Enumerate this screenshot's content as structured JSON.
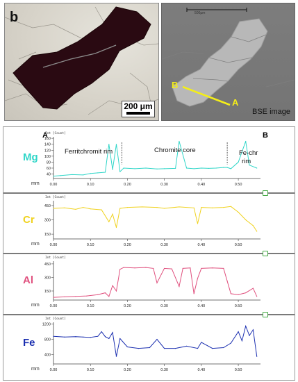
{
  "figure": {
    "panel_letter": "b",
    "scale_bar_text": "200 μm",
    "bse_scale_text": "500μm",
    "bse_label": "BSE image",
    "point_a": "A",
    "point_b": "B"
  },
  "profile": {
    "corner_a": "A",
    "corner_b": "B",
    "int_label": "Int [Count]",
    "mm_label": "mm",
    "annotations": {
      "ferrichromit_rim": "Ferritchromit rim",
      "chromite_core": "Chromite core",
      "fe_chr_rim_1": "Fe-chr",
      "fe_chr_rim_2": "rim"
    },
    "colors": {
      "Mg": "#2fd6c8",
      "Cr": "#f0d21e",
      "Al": "#e0507e",
      "Fe": "#1b2fb0"
    }
  },
  "chart_data": [
    {
      "type": "line",
      "series": [
        {
          "name": "Mg"
        }
      ],
      "x_ticks": [
        "0.00",
        "0.10",
        "0.20",
        "0.30",
        "0.40",
        "0.50"
      ],
      "y_ticks": [
        "40",
        "60",
        "80",
        "100",
        "120",
        "140",
        "160"
      ],
      "ylim": [
        25,
        165
      ],
      "xlim": [
        0,
        0.56
      ],
      "x": [
        0.0,
        0.02,
        0.05,
        0.08,
        0.1,
        0.12,
        0.14,
        0.15,
        0.16,
        0.17,
        0.18,
        0.19,
        0.22,
        0.25,
        0.28,
        0.3,
        0.33,
        0.34,
        0.36,
        0.38,
        0.4,
        0.42,
        0.44,
        0.46,
        0.47,
        0.48,
        0.5,
        0.52,
        0.53,
        0.55
      ],
      "y": [
        33,
        35,
        38,
        37,
        42,
        44,
        46,
        140,
        55,
        140,
        48,
        60,
        58,
        60,
        57,
        58,
        59,
        150,
        60,
        58,
        60,
        59,
        60,
        62,
        62,
        58,
        80,
        150,
        70,
        60
      ]
    },
    {
      "type": "line",
      "series": [
        {
          "name": "Cr"
        }
      ],
      "x_ticks": [
        "0.00",
        "0.10",
        "0.20",
        "0.30",
        "0.40",
        "0.50"
      ],
      "y_ticks": [
        "150",
        "300",
        "450"
      ],
      "ylim": [
        100,
        500
      ],
      "xlim": [
        0,
        0.56
      ],
      "x": [
        0.0,
        0.03,
        0.06,
        0.08,
        0.1,
        0.13,
        0.15,
        0.16,
        0.17,
        0.18,
        0.2,
        0.24,
        0.28,
        0.3,
        0.34,
        0.38,
        0.39,
        0.4,
        0.43,
        0.46,
        0.48,
        0.5,
        0.52,
        0.54,
        0.55
      ],
      "y": [
        420,
        425,
        410,
        430,
        415,
        405,
        280,
        360,
        220,
        420,
        430,
        435,
        430,
        420,
        435,
        425,
        260,
        430,
        425,
        430,
        440,
        380,
        300,
        240,
        180
      ]
    },
    {
      "type": "line",
      "series": [
        {
          "name": "Al"
        }
      ],
      "x_ticks": [
        "0.00",
        "0.10",
        "0.20",
        "0.30",
        "0.40",
        "0.50"
      ],
      "y_ticks": [
        "150",
        "300",
        "450"
      ],
      "ylim": [
        50,
        480
      ],
      "xlim": [
        0,
        0.56
      ],
      "x": [
        0.0,
        0.03,
        0.06,
        0.09,
        0.12,
        0.14,
        0.15,
        0.16,
        0.17,
        0.18,
        0.19,
        0.22,
        0.25,
        0.27,
        0.28,
        0.3,
        0.32,
        0.34,
        0.35,
        0.37,
        0.38,
        0.39,
        0.4,
        0.43,
        0.46,
        0.47,
        0.48,
        0.5,
        0.52,
        0.54,
        0.55
      ],
      "y": [
        80,
        85,
        90,
        95,
        110,
        130,
        90,
        210,
        150,
        390,
        410,
        405,
        410,
        400,
        240,
        400,
        395,
        200,
        400,
        405,
        120,
        290,
        400,
        405,
        400,
        260,
        120,
        110,
        130,
        180,
        90
      ]
    },
    {
      "type": "line",
      "series": [
        {
          "name": "Fe"
        }
      ],
      "x_ticks": [
        "0.00",
        "0.10",
        "0.20",
        "0.30",
        "0.40",
        "0.50"
      ],
      "y_ticks": [
        "400",
        "800",
        "1200"
      ],
      "ylim": [
        150,
        1250
      ],
      "xlim": [
        0,
        0.56
      ],
      "x": [
        0.0,
        0.03,
        0.06,
        0.08,
        0.1,
        0.12,
        0.13,
        0.14,
        0.15,
        0.16,
        0.17,
        0.18,
        0.2,
        0.23,
        0.26,
        0.28,
        0.3,
        0.33,
        0.36,
        0.39,
        0.4,
        0.43,
        0.46,
        0.48,
        0.5,
        0.51,
        0.52,
        0.53,
        0.54,
        0.55
      ],
      "y": [
        880,
        860,
        870,
        860,
        850,
        880,
        1000,
        870,
        820,
        980,
        350,
        820,
        600,
        560,
        580,
        800,
        560,
        560,
        620,
        560,
        720,
        560,
        580,
        700,
        1000,
        760,
        1150,
        900,
        1050,
        350
      ]
    }
  ]
}
